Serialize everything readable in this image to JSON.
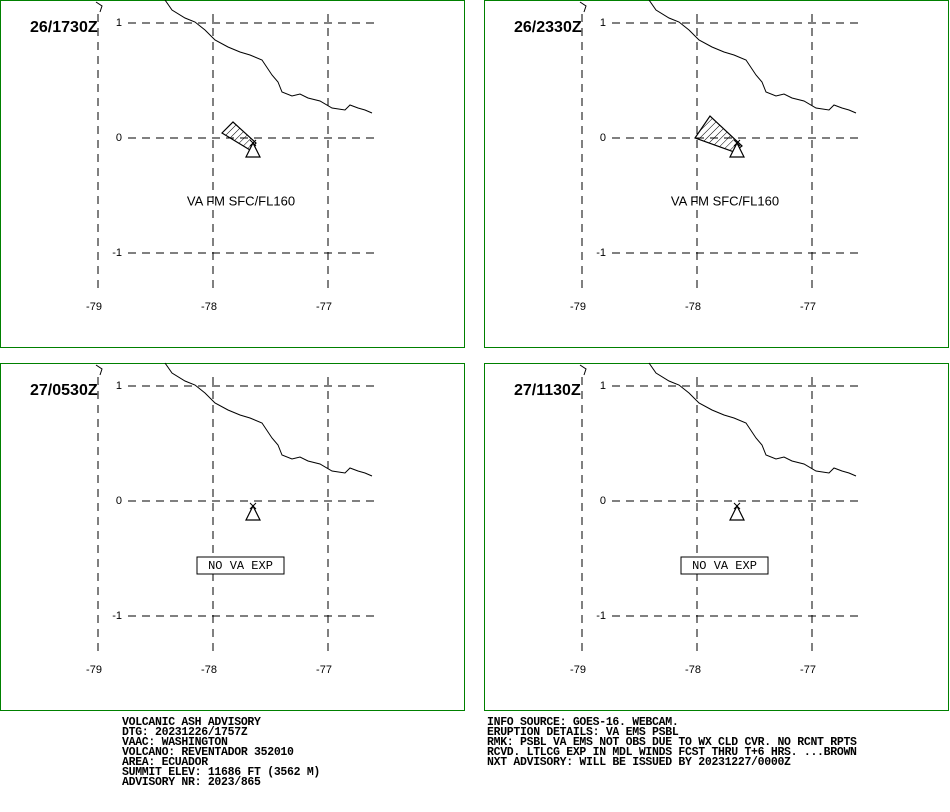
{
  "panels": [
    {
      "time": "26/1730Z",
      "label": "VA FM SFC/FL160"
    },
    {
      "time": "26/2330Z",
      "label": "VA FM SFC/FL160"
    },
    {
      "time": "27/0530Z",
      "label": "NO VA EXP"
    },
    {
      "time": "27/1130Z",
      "label": "NO VA EXP"
    }
  ],
  "lat_labels": [
    "1",
    "0",
    "-1"
  ],
  "lon_labels": [
    "-79",
    "-78",
    "-77"
  ],
  "advisory_left": [
    "VOLCANIC ASH ADVISORY",
    "DTG: 20231226/1757Z",
    "VAAC: WASHINGTON",
    "VOLCANO: REVENTADOR 352010",
    "AREA: ECUADOR",
    "SUMMIT ELEV: 11686 FT (3562 M)",
    "ADVISORY NR: 2023/865"
  ],
  "advisory_right": [
    "INFO SOURCE: GOES-16. WEBCAM.",
    "ERUPTION DETAILS: VA EMS PSBL",
    "RMK: PSBL VA EMS NOT OBS DUE TO WX CLD CVR. NO RCNT RPTS",
    "RCVD. LTLCG EXP IN MDL WINDS FCST THRU T+6 HRS. ...BROWN",
    "NXT ADVISORY: WILL BE ISSUED BY 20231227/0000Z"
  ]
}
